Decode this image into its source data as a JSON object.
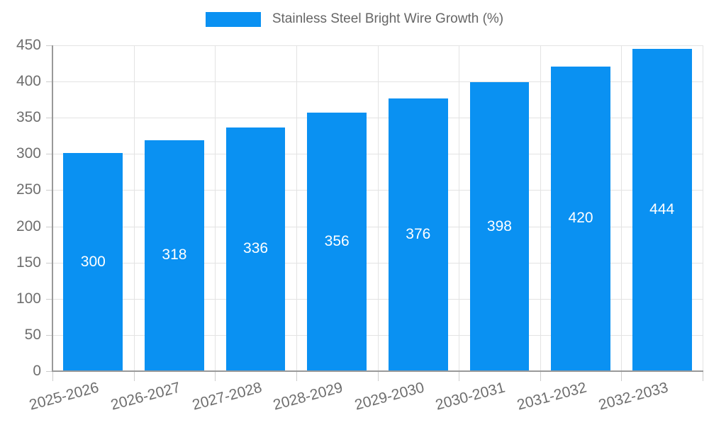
{
  "chart_data": {
    "type": "bar",
    "title": "Stainless Steel Bright Wire Growth (%)",
    "xlabel": "",
    "ylabel": "",
    "categories": [
      "2025-2026",
      "2026-2027",
      "2027-2028",
      "2028-2029",
      "2029-2030",
      "2030-2031",
      "2031-2032",
      "2032-2033"
    ],
    "values": [
      300,
      318,
      336,
      356,
      376,
      398,
      420,
      444
    ],
    "bar_labels": [
      "300",
      "318",
      "336",
      "356",
      "376",
      "398",
      "420",
      "444"
    ],
    "ylim": [
      0,
      450
    ],
    "ytick_step": 50,
    "yticks": [
      0,
      50,
      100,
      150,
      200,
      250,
      300,
      350,
      400,
      450
    ],
    "grid": "on",
    "legend_position": "top",
    "x_label_rotation_deg": -15,
    "colors": {
      "bar": "#0a91f2",
      "bar_label": "#ffffff",
      "grid": "#e3e3e3",
      "axis": "#999999",
      "tick": "#cccccc",
      "text": "#6e6e6e",
      "legend_text": "#666666",
      "background": "#ffffff"
    }
  }
}
